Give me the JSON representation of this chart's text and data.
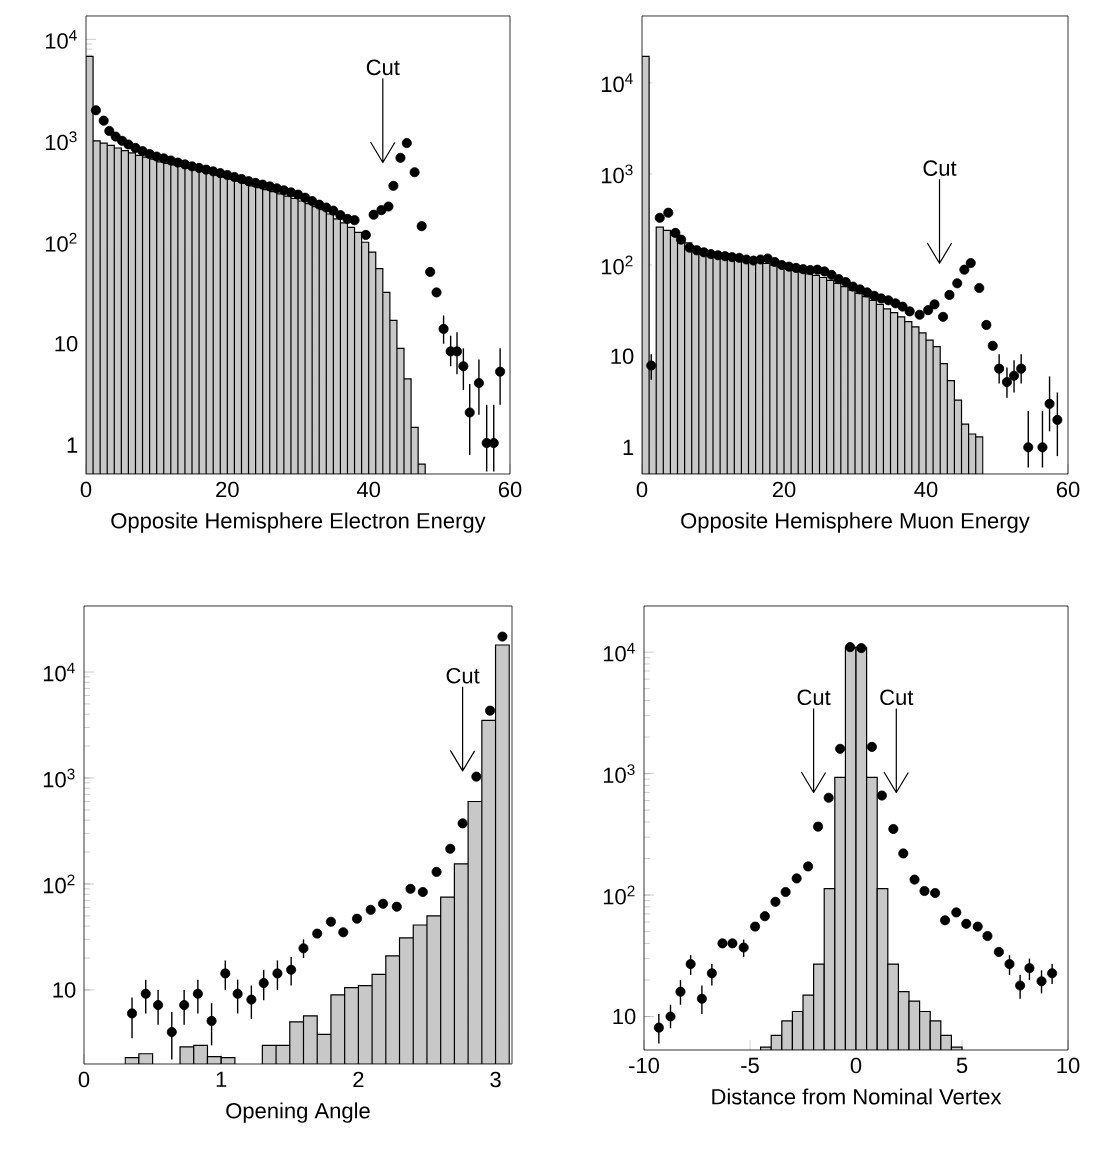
{
  "chart_data": [
    {
      "type": "histogram",
      "xlabel": "Opposite Hemisphere Electron Energy",
      "xlim": [
        0,
        60
      ],
      "ylim": [
        0.52,
        17000
      ],
      "log": "y",
      "xticks": [
        0,
        20,
        40,
        60
      ],
      "yticks": [
        1,
        10,
        {
          "value": 100,
          "label": "10$^{2}$"
        },
        {
          "value": 1000,
          "label": "10$^{3}$"
        },
        {
          "value": 10000,
          "label": "10$^{4}$"
        }
      ],
      "ref_lines": [
        {
          "axis": "x",
          "value": 42,
          "label": "Cut"
        }
      ],
      "series": [
        {
          "color": "#c8c8c8",
          "bins": [
            0,
            1,
            2,
            3,
            4,
            5,
            6,
            7,
            8,
            9,
            10,
            11,
            12,
            13,
            14,
            15,
            16,
            17,
            18,
            19,
            20,
            21,
            22,
            23,
            24,
            25,
            26,
            27,
            28,
            29,
            30,
            31,
            32,
            33,
            34,
            35,
            36,
            37,
            38,
            39,
            40,
            41,
            42,
            43,
            44,
            45,
            46,
            47,
            48
          ],
          "values": [
            6800,
            1000,
            950,
            900,
            850,
            800,
            760,
            720,
            690,
            660,
            620,
            600,
            580,
            560,
            540,
            520,
            500,
            480,
            460,
            440,
            420,
            400,
            380,
            360,
            345,
            330,
            315,
            300,
            285,
            270,
            255,
            240,
            225,
            210,
            190,
            170,
            155,
            140,
            125,
            100,
            80,
            55,
            32,
            17,
            9,
            4.5,
            1.5,
            0.65
          ]
        },
        {
          "type": "scatter",
          "color": "#000000",
          "marker": "circle",
          "x": [
            1.4,
            2.5,
            3.3,
            4.2,
            5.1,
            6,
            7,
            8,
            9,
            10,
            11,
            12,
            13,
            14,
            15,
            16,
            17,
            18,
            19,
            20,
            21,
            22,
            23,
            24,
            25,
            26,
            27,
            28,
            29,
            30,
            31,
            32,
            33,
            34,
            35,
            36,
            37,
            38,
            39.6,
            40.7,
            41.8,
            42.8,
            43.5,
            44.5,
            45.4,
            46.5,
            47.5,
            48.7,
            49.6,
            50.6,
            51.6,
            52.5,
            53.4,
            54.3,
            55.6,
            56.7,
            57.7,
            58.6
          ],
          "values": [
            2000,
            1580,
            1250,
            1100,
            1000,
            920,
            850,
            790,
            740,
            700,
            670,
            640,
            610,
            585,
            560,
            540,
            520,
            500,
            480,
            460,
            440,
            420,
            400,
            385,
            370,
            355,
            340,
            325,
            310,
            295,
            275,
            255,
            235,
            220,
            205,
            185,
            170,
            165,
            118,
            187,
            207,
            225,
            360,
            680,
            950,
            490,
            144,
            51,
            32,
            14,
            8.4,
            8.4,
            6.0,
            2.1,
            4.1,
            1.05,
            1.05,
            5.3
          ],
          "errors": [
            null,
            null,
            null,
            null,
            null,
            null,
            null,
            null,
            null,
            null,
            null,
            null,
            null,
            null,
            null,
            null,
            null,
            null,
            null,
            null,
            null,
            null,
            null,
            null,
            null,
            null,
            null,
            null,
            null,
            null,
            null,
            null,
            null,
            null,
            null,
            null,
            null,
            null,
            null,
            null,
            null,
            null,
            null,
            null,
            null,
            null,
            null,
            null,
            null,
            [
              10,
              19
            ],
            [
              6,
              12
            ],
            [
              5,
              13
            ],
            [
              3.5,
              9
            ],
            [
              0.8,
              4
            ],
            [
              2,
              7
            ],
            [
              0.55,
              2.5
            ],
            [
              0.55,
              2.5
            ],
            [
              2.5,
              9
            ]
          ]
        }
      ]
    },
    {
      "type": "histogram",
      "xlabel": "Opposite Hemisphere Muon Energy",
      "xlim": [
        0,
        60
      ],
      "ylim": [
        0.51,
        54000
      ],
      "log": "y",
      "xticks": [
        0,
        20,
        40,
        60
      ],
      "yticks": [
        1,
        10,
        {
          "value": 100,
          "label": "10$^{2}$"
        },
        {
          "value": 1000,
          "label": "10$^{3}$"
        },
        {
          "value": 10000,
          "label": "10$^{4}$"
        }
      ],
      "ref_lines": [
        {
          "axis": "x",
          "value": 41.9,
          "label": "Cut"
        }
      ],
      "series": [
        {
          "color": "#c8c8c8",
          "bins": [
            0,
            1,
            2,
            3,
            4,
            5,
            6,
            7,
            8,
            9,
            10,
            11,
            12,
            13,
            14,
            15,
            16,
            17,
            18,
            19,
            20,
            21,
            22,
            23,
            24,
            25,
            26,
            27,
            28,
            29,
            30,
            31,
            32,
            33,
            34,
            35,
            36,
            37,
            38,
            39,
            40,
            41,
            42,
            43,
            44,
            45,
            46,
            47,
            48
          ],
          "values": [
            19500,
            8,
            260,
            240,
            210,
            190,
            175,
            160,
            150,
            140,
            135,
            130,
            125,
            120,
            117,
            113,
            108,
            104,
            100,
            96,
            92,
            88,
            84,
            80,
            77,
            73,
            68,
            63,
            58,
            53,
            49,
            45,
            41,
            37,
            33,
            30,
            27,
            24,
            21,
            18,
            15,
            12.7,
            8.3,
            5.4,
            3.3,
            1.8,
            1.4,
            1.3
          ]
        },
        {
          "type": "scatter",
          "color": "#000000",
          "marker": "circle",
          "x": [
            1.3,
            2.5,
            3.7,
            4.7,
            5.5,
            6.7,
            7.7,
            8.7,
            9.7,
            10.7,
            11.7,
            12.7,
            13.7,
            14.7,
            15.7,
            16.7,
            17.7,
            18.7,
            19.7,
            20.7,
            21.7,
            22.7,
            23.7,
            24.7,
            25.7,
            26.7,
            27.7,
            28.7,
            29.7,
            30.7,
            31.7,
            32.7,
            33.7,
            34.7,
            35.7,
            36.7,
            37.7,
            39.1,
            40.3,
            41.2,
            42.4,
            43.3,
            44.4,
            45.4,
            46.3,
            47.5,
            48.5,
            49.4,
            50.3,
            51.4,
            52.4,
            53.4,
            54.4,
            56.4,
            57.4,
            58.5
          ],
          "values": [
            7.9,
            330,
            375,
            225,
            190,
            155,
            145,
            138,
            132,
            128,
            125,
            122,
            120,
            115,
            112,
            115,
            118,
            108,
            100,
            96,
            93,
            90,
            88,
            89,
            85,
            78,
            70,
            65,
            58,
            54,
            50,
            46,
            43,
            41,
            38,
            35,
            31,
            28.5,
            32,
            37,
            27,
            47,
            63,
            89,
            105,
            56,
            22,
            13,
            7.3,
            5.2,
            6.1,
            7.3,
            1.0,
            1.0,
            3.0,
            2.0
          ],
          "errors": [
            [
              5.5,
              10.5
            ],
            null,
            null,
            null,
            null,
            null,
            null,
            null,
            null,
            null,
            null,
            null,
            null,
            null,
            null,
            null,
            null,
            null,
            null,
            null,
            null,
            null,
            null,
            null,
            null,
            null,
            null,
            null,
            null,
            null,
            null,
            null,
            null,
            null,
            null,
            null,
            null,
            null,
            null,
            null,
            null,
            null,
            null,
            null,
            null,
            null,
            null,
            null,
            [
              5,
              10.5
            ],
            [
              3.5,
              7.5
            ],
            [
              4,
              9
            ],
            [
              5,
              10.5
            ],
            [
              0.6,
              2.5
            ],
            [
              0.6,
              2.5
            ],
            [
              1.5,
              6
            ],
            [
              0.8,
              4
            ]
          ]
        }
      ]
    },
    {
      "type": "histogram",
      "xlabel": "Opening Angle",
      "xlim": [
        0,
        3.12
      ],
      "ylim": [
        2.0,
        42000
      ],
      "log": "y",
      "xticks": [
        0,
        1,
        2,
        3
      ],
      "yticks": [
        10,
        {
          "value": 100,
          "label": "10$^{2}$"
        },
        {
          "value": 1000,
          "label": "10$^{3}$"
        },
        {
          "value": 10000,
          "label": "10$^{4}$"
        }
      ],
      "ref_lines": [
        {
          "axis": "x",
          "value": 2.76,
          "label": "Cut"
        }
      ],
      "series": [
        {
          "color": "#c8c8c8",
          "bins": [
            0.2,
            0.3,
            0.4,
            0.5,
            0.6,
            0.7,
            0.8,
            0.9,
            1.0,
            1.1,
            1.2,
            1.3,
            1.4,
            1.5,
            1.6,
            1.7,
            1.8,
            1.9,
            2.0,
            2.1,
            2.2,
            2.3,
            2.4,
            2.5,
            2.6,
            2.7,
            2.8,
            2.9,
            3.0,
            3.1
          ],
          "values": [
            null,
            2.3,
            2.5,
            null,
            null,
            2.9,
            3.0,
            2.35,
            2.3,
            null,
            null,
            3.0,
            3.0,
            5.0,
            5.7,
            3.8,
            9,
            10.5,
            11,
            14,
            21,
            31,
            41,
            50,
            75,
            155,
            600,
            3500,
            18000
          ]
        },
        {
          "type": "scatter",
          "color": "#000000",
          "marker": "circle",
          "x": [
            0.35,
            0.45,
            0.54,
            0.64,
            0.73,
            0.83,
            0.93,
            1.03,
            1.12,
            1.22,
            1.31,
            1.41,
            1.51,
            1.6,
            1.7,
            1.8,
            1.89,
            1.99,
            2.09,
            2.18,
            2.28,
            2.38,
            2.47,
            2.57,
            2.67,
            2.76,
            2.86,
            2.96,
            3.05
          ],
          "values": [
            6,
            9.2,
            7.2,
            4,
            7.2,
            9.2,
            5.1,
            14.3,
            9.2,
            8.1,
            11.6,
            14.3,
            15.5,
            24.7,
            34,
            44,
            35,
            47,
            57,
            65,
            61,
            90,
            84,
            130,
            215,
            373,
            1030,
            4320,
            21600
          ],
          "errors": [
            [
              3.5,
              8.5
            ],
            [
              6,
              12.5
            ],
            [
              4.7,
              10
            ],
            [
              2.2,
              6.2
            ],
            [
              4.7,
              10
            ],
            [
              6,
              12.5
            ],
            [
              3,
              7.5
            ],
            [
              10,
              19
            ],
            [
              6,
              12.5
            ],
            [
              5.3,
              11
            ],
            [
              8,
              15.5
            ],
            [
              10,
              19
            ],
            [
              11,
              20.5
            ],
            [
              20,
              30
            ],
            null,
            null,
            null,
            null,
            null,
            null,
            null,
            null,
            null,
            null,
            null,
            null,
            null,
            null,
            null
          ]
        }
      ]
    },
    {
      "type": "histogram",
      "xlabel": "Distance from Nominal Vertex",
      "xlim": [
        -10,
        10
      ],
      "ylim": [
        5.3,
        24000
      ],
      "log": "y",
      "xticks": [
        -10,
        -5,
        0,
        5,
        10
      ],
      "yticks": [
        10,
        {
          "value": 100,
          "label": "10$^{2}$"
        },
        {
          "value": 1000,
          "label": "10$^{3}$"
        },
        {
          "value": 10000,
          "label": "10$^{4}$"
        }
      ],
      "ref_lines": [
        {
          "axis": "x",
          "value": -2.0,
          "label": "Cut"
        },
        {
          "axis": "x",
          "value": 1.9,
          "label": "Cut"
        }
      ],
      "series": [
        {
          "color": "#c8c8c8",
          "bins": [
            -4.5,
            -4,
            -3.5,
            -3,
            -2.5,
            -2,
            -1.5,
            -1,
            -0.5,
            0,
            0.5,
            1,
            1.5,
            2,
            2.5,
            3,
            3.5,
            4,
            4.5,
            5
          ],
          "values": [
            5.6,
            7,
            9.2,
            11,
            15,
            27,
            113,
            930,
            11000,
            11000,
            930,
            113,
            27,
            16,
            13.4,
            11,
            9.2,
            7,
            5.6
          ]
        },
        {
          "type": "scatter",
          "color": "#000000",
          "marker": "circle",
          "x": [
            -9.3,
            -8.75,
            -8.28,
            -7.8,
            -7.27,
            -6.8,
            -6.3,
            -5.83,
            -5.3,
            -4.76,
            -4.3,
            -3.8,
            -3.32,
            -2.8,
            -2.26,
            -1.79,
            -1.29,
            -0.75,
            -0.28,
            0.25,
            0.75,
            1.22,
            1.76,
            2.23,
            2.76,
            3.23,
            3.73,
            4.2,
            4.73,
            5.2,
            5.74,
            6.2,
            6.74,
            7.24,
            7.74,
            8.18,
            8.75,
            9.25
          ],
          "values": [
            8.1,
            10,
            16,
            27,
            14,
            22.7,
            40,
            40,
            37,
            55,
            67,
            88,
            106,
            137,
            172,
            366,
            633,
            1600,
            11000,
            10800,
            1660,
            660,
            350,
            220,
            134,
            108,
            104,
            62,
            72,
            58,
            55,
            46,
            34,
            27,
            18,
            25,
            19.5,
            22.7
          ],
          "errors": [
            [
              6,
              10.5
            ],
            [
              8,
              12.5
            ],
            [
              12.5,
              20
            ],
            [
              22,
              32
            ],
            [
              10.5,
              18
            ],
            [
              18,
              27
            ],
            null,
            null,
            [
              31,
              43
            ],
            null,
            null,
            null,
            null,
            null,
            null,
            null,
            null,
            null,
            null,
            null,
            null,
            null,
            null,
            null,
            null,
            null,
            null,
            null,
            null,
            null,
            null,
            null,
            null,
            [
              22,
              32
            ],
            [
              14,
              22
            ],
            [
              20,
              30
            ],
            [
              15.5,
              24
            ],
            [
              18.5,
              27
            ]
          ]
        }
      ]
    }
  ]
}
